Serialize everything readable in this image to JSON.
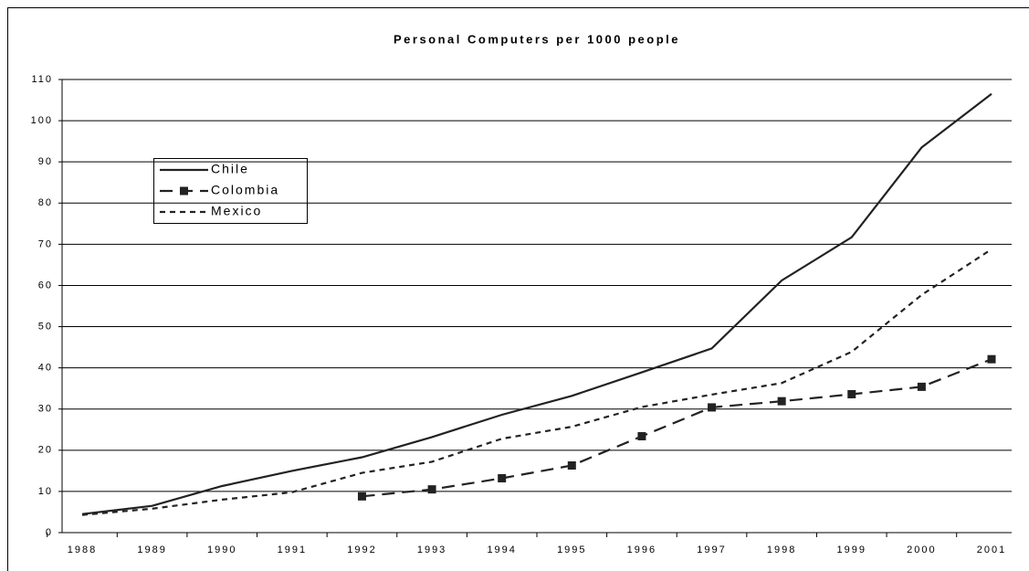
{
  "chart_data": {
    "type": "line",
    "title": "Personal Computers per 1000 people",
    "categories": [
      "1988",
      "1989",
      "1990",
      "1991",
      "1992",
      "1993",
      "1994",
      "1995",
      "1996",
      "1997",
      "1998",
      "1999",
      "2000",
      "2001"
    ],
    "series": [
      {
        "name": "Chile",
        "color": "#222222",
        "line_style": "solid",
        "marker": "none",
        "values": [
          4.5,
          6.5,
          11.3,
          15.0,
          18.3,
          23.2,
          28.6,
          33.2,
          38.9,
          44.7,
          61.2,
          71.7,
          93.5,
          106.5
        ]
      },
      {
        "name": "Colombia",
        "color": "#222222",
        "line_style": "dashed",
        "marker": "square",
        "values": [
          null,
          null,
          null,
          null,
          8.8,
          10.5,
          13.2,
          16.3,
          23.4,
          30.4,
          31.9,
          33.6,
          35.4,
          42.1
        ]
      },
      {
        "name": "Mexico",
        "color": "#222222",
        "line_style": "dotted",
        "marker": "none",
        "values": [
          4.3,
          5.8,
          8.0,
          9.8,
          14.5,
          17.2,
          22.8,
          25.7,
          30.5,
          33.5,
          36.3,
          43.9,
          57.7,
          68.8
        ]
      }
    ],
    "ylim": [
      0,
      110
    ],
    "yticks": [
      0,
      10,
      20,
      30,
      40,
      50,
      60,
      70,
      80,
      90,
      100,
      110
    ],
    "grid": true
  }
}
